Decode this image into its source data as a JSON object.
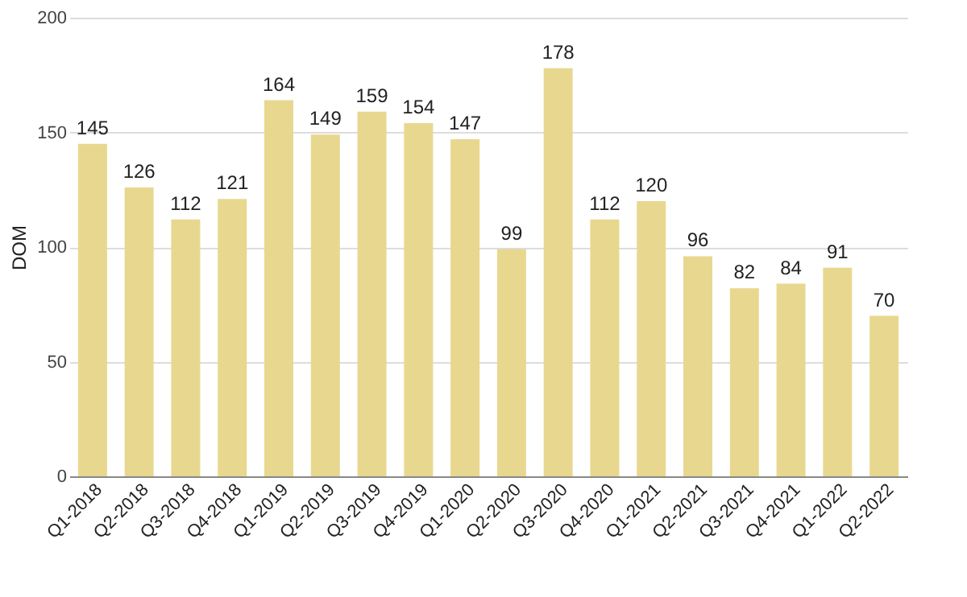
{
  "chart_data": {
    "type": "bar",
    "ylabel": "DOM",
    "categories": [
      "Q1-2018",
      "Q2-2018",
      "Q3-2018",
      "Q4-2018",
      "Q1-2019",
      "Q2-2019",
      "Q3-2019",
      "Q4-2019",
      "Q1-2020",
      "Q2-2020",
      "Q3-2020",
      "Q4-2020",
      "Q1-2021",
      "Q2-2021",
      "Q3-2021",
      "Q4-2021",
      "Q1-2022",
      "Q2-2022"
    ],
    "values": [
      145,
      126,
      112,
      121,
      164,
      149,
      159,
      154,
      147,
      99,
      178,
      112,
      120,
      96,
      82,
      84,
      91,
      70
    ],
    "color": "#e8d88f",
    "ylim": [
      0,
      200
    ],
    "yticks": [
      0,
      50,
      100,
      150,
      200
    ],
    "grid": "y",
    "data_labels": true
  }
}
